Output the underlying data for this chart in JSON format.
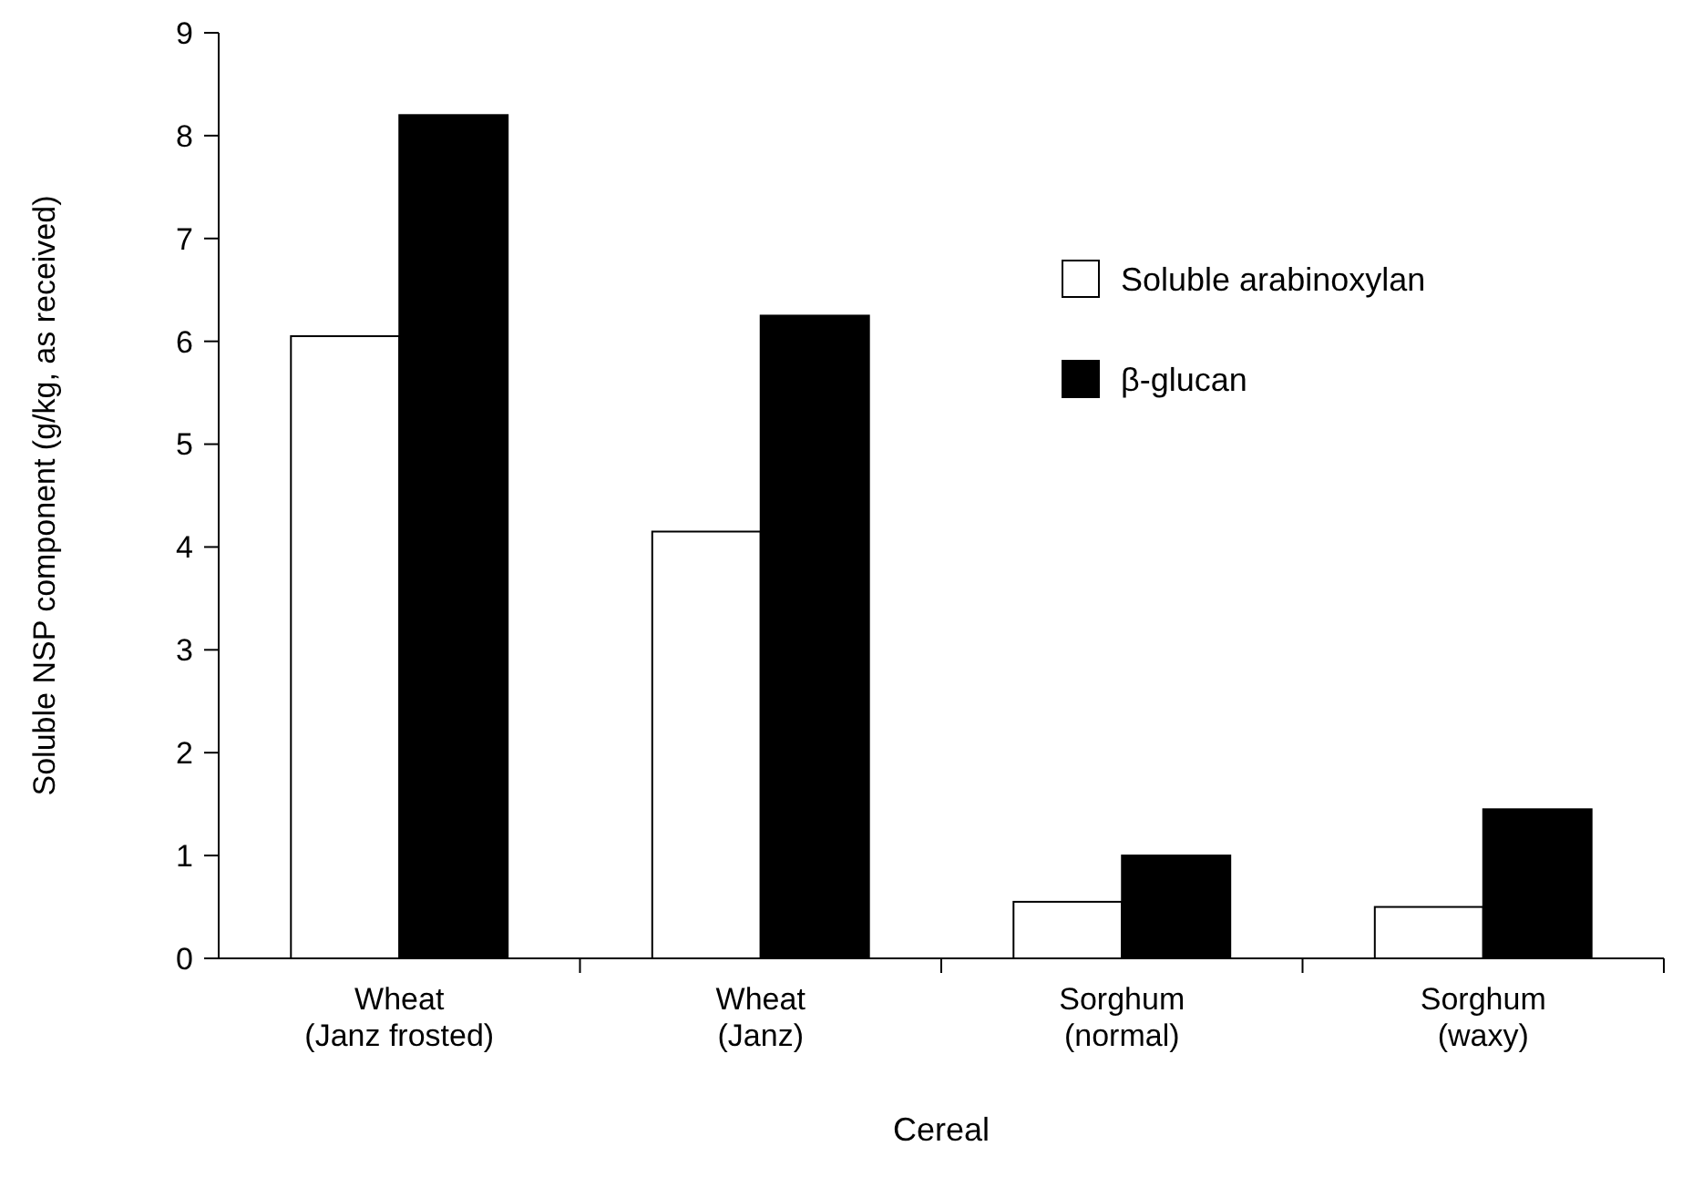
{
  "chart_data": {
    "type": "bar",
    "xlabel": "Cereal",
    "ylabel": "Soluble NSP component (g/kg, as received)",
    "categories": [
      "Wheat\n(Janz frosted)",
      "Wheat\n(Janz)",
      "Sorghum\n(normal)",
      "Sorghum\n(waxy)"
    ],
    "series": [
      {
        "name": "Soluble arabinoxylan",
        "color": "#ffffff",
        "values": [
          6.05,
          4.15,
          0.55,
          0.5
        ]
      },
      {
        "name": "β-glucan",
        "color": "#000000",
        "values": [
          8.2,
          6.25,
          1.0,
          1.45
        ]
      }
    ],
    "ylim": [
      0,
      9
    ],
    "yticks": [
      0,
      1,
      2,
      3,
      4,
      5,
      6,
      7,
      8,
      9
    ],
    "grid": false,
    "legend": "top right"
  }
}
